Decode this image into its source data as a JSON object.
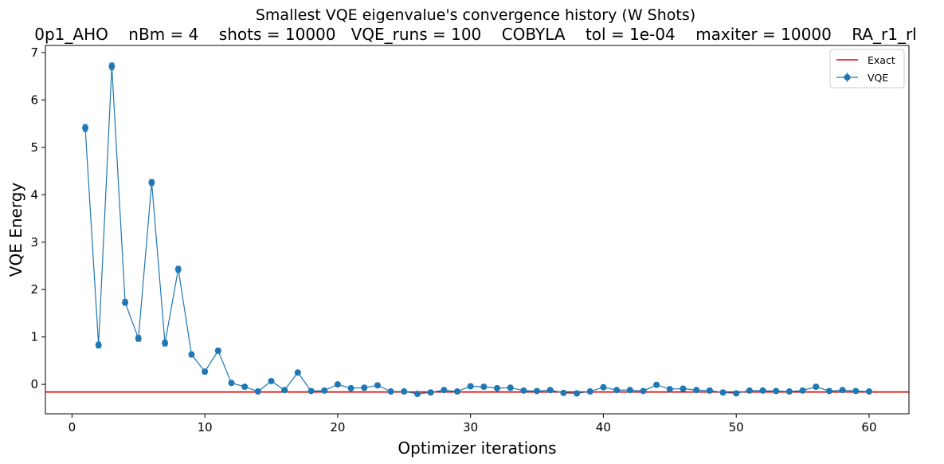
{
  "chart_data": {
    "type": "line",
    "title": "Smallest VQE eigenvalue's convergence history (W Shots)",
    "subtitle": "0p1_AHO    nBm = 4    shots = 10000   VQE_runs = 100    COBYLA    tol = 1e-04    maxiter = 10000    RA_r1_rl",
    "xlabel": "Optimizer iterations",
    "ylabel": "VQE Energy",
    "xlim": [
      -2,
      63
    ],
    "ylim": [
      -0.62,
      7.15
    ],
    "xticks": [
      0,
      10,
      20,
      30,
      40,
      50,
      60
    ],
    "yticks": [
      0,
      1,
      2,
      3,
      4,
      5,
      6,
      7
    ],
    "grid": false,
    "legend_position": "top-right",
    "colors": {
      "vqe": "#1f77b4",
      "exact": "#e00000"
    },
    "exact": {
      "name": "Exact",
      "value": -0.16
    },
    "series": [
      {
        "name": "VQE",
        "x": [
          1,
          2,
          3,
          4,
          5,
          6,
          7,
          8,
          9,
          10,
          11,
          12,
          13,
          14,
          15,
          16,
          17,
          18,
          19,
          20,
          21,
          22,
          23,
          24,
          25,
          26,
          27,
          28,
          29,
          30,
          31,
          32,
          33,
          34,
          35,
          36,
          37,
          38,
          39,
          40,
          41,
          42,
          43,
          44,
          45,
          46,
          47,
          48,
          49,
          50,
          51,
          52,
          53,
          54,
          55,
          56,
          57,
          58,
          59,
          60
        ],
        "values": [
          5.41,
          0.83,
          6.71,
          1.73,
          0.97,
          4.26,
          0.87,
          2.43,
          0.63,
          0.27,
          0.71,
          0.03,
          -0.05,
          -0.15,
          0.07,
          -0.12,
          0.25,
          -0.14,
          -0.13,
          0.0,
          -0.08,
          -0.07,
          -0.02,
          -0.15,
          -0.15,
          -0.2,
          -0.17,
          -0.12,
          -0.15,
          -0.04,
          -0.05,
          -0.08,
          -0.07,
          -0.13,
          -0.14,
          -0.12,
          -0.18,
          -0.19,
          -0.15,
          -0.06,
          -0.12,
          -0.12,
          -0.14,
          -0.01,
          -0.1,
          -0.09,
          -0.12,
          -0.13,
          -0.17,
          -0.19,
          -0.13,
          -0.13,
          -0.14,
          -0.15,
          -0.13,
          -0.05,
          -0.14,
          -0.12,
          -0.14,
          -0.15
        ],
        "errors": [
          0.07,
          0.06,
          0.07,
          0.06,
          0.06,
          0.06,
          0.06,
          0.06,
          0.05,
          0.05,
          0.05,
          0.04,
          0.04,
          0.04,
          0.04,
          0.04,
          0.04,
          0.04,
          0.04,
          0.04,
          0.04,
          0.04,
          0.04,
          0.04,
          0.04,
          0.04,
          0.04,
          0.04,
          0.04,
          0.04,
          0.04,
          0.04,
          0.04,
          0.04,
          0.04,
          0.04,
          0.04,
          0.04,
          0.04,
          0.04,
          0.04,
          0.04,
          0.04,
          0.04,
          0.04,
          0.04,
          0.04,
          0.04,
          0.04,
          0.04,
          0.04,
          0.04,
          0.04,
          0.04,
          0.04,
          0.04,
          0.04,
          0.04,
          0.04,
          0.04
        ]
      }
    ]
  }
}
